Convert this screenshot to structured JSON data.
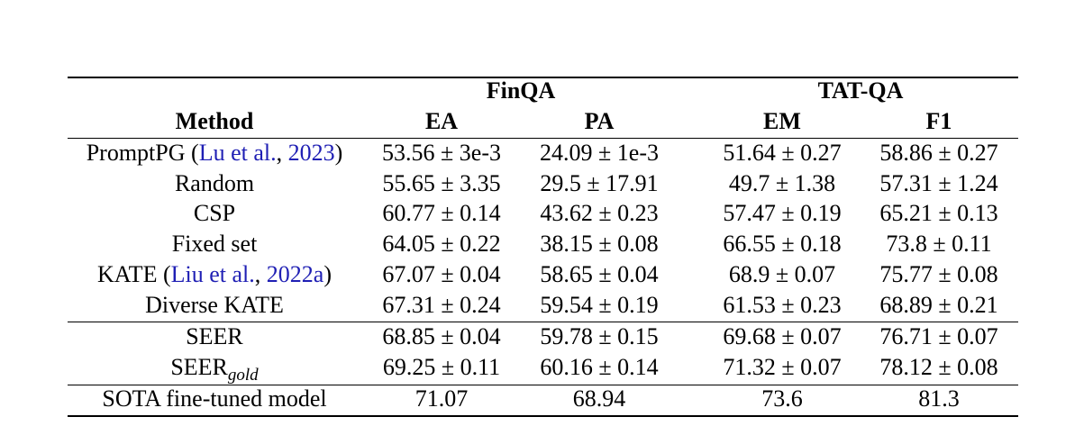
{
  "table": {
    "group_headers": [
      "FinQA",
      "TAT-QA"
    ],
    "column_headers": [
      "Method",
      "EA",
      "PA",
      "EM",
      "F1"
    ],
    "rows": [
      {
        "method": "PromptPG",
        "cite_open": "(",
        "cite_author": "Lu et al.",
        "cite_sep": ",",
        "cite_year": "2023",
        "cite_close": ")",
        "ea": "53.56 ± 3e-3",
        "pa": "24.09 ± 1e-3",
        "em": "51.64 ± 0.27",
        "f1": "58.86 ± 0.27"
      },
      {
        "method": "Random",
        "ea": "55.65 ± 3.35",
        "pa": "29.5 ± 17.91",
        "em": "49.7 ± 1.38",
        "f1": "57.31 ± 1.24"
      },
      {
        "method": "CSP",
        "ea": "60.77 ± 0.14",
        "pa": "43.62 ± 0.23",
        "em": "57.47 ± 0.19",
        "f1": "65.21 ± 0.13"
      },
      {
        "method": "Fixed set",
        "ea": "64.05 ± 0.22",
        "pa": "38.15 ± 0.08",
        "em": "66.55 ± 0.18",
        "f1": "73.8 ± 0.11"
      },
      {
        "method": "KATE",
        "cite_open": "(",
        "cite_author": "Liu et al.",
        "cite_sep": ",",
        "cite_year": "2022a",
        "cite_close": ")",
        "ea": "67.07 ± 0.04",
        "pa": "58.65 ± 0.04",
        "em": "68.9 ± 0.07",
        "f1": "75.77 ± 0.08"
      },
      {
        "method": "Diverse KATE",
        "ea": "67.31 ± 0.24",
        "pa": "59.54 ± 0.19",
        "em": "61.53 ± 0.23",
        "f1": "68.89 ± 0.21"
      },
      {
        "method": "SEER",
        "ea": "68.85 ± 0.04",
        "pa": "59.78 ± 0.15",
        "em": "69.68 ± 0.07",
        "f1": "76.71 ± 0.07"
      },
      {
        "method": "SEER",
        "method_sub": "gold",
        "ea": "69.25 ± 0.11",
        "pa": "60.16 ± 0.14",
        "em": "71.32 ± 0.07",
        "f1": "78.12 ± 0.08"
      },
      {
        "method": "SOTA fine-tuned model",
        "ea": "71.07",
        "pa": "68.94",
        "em": "73.6",
        "f1": "81.3"
      }
    ]
  }
}
